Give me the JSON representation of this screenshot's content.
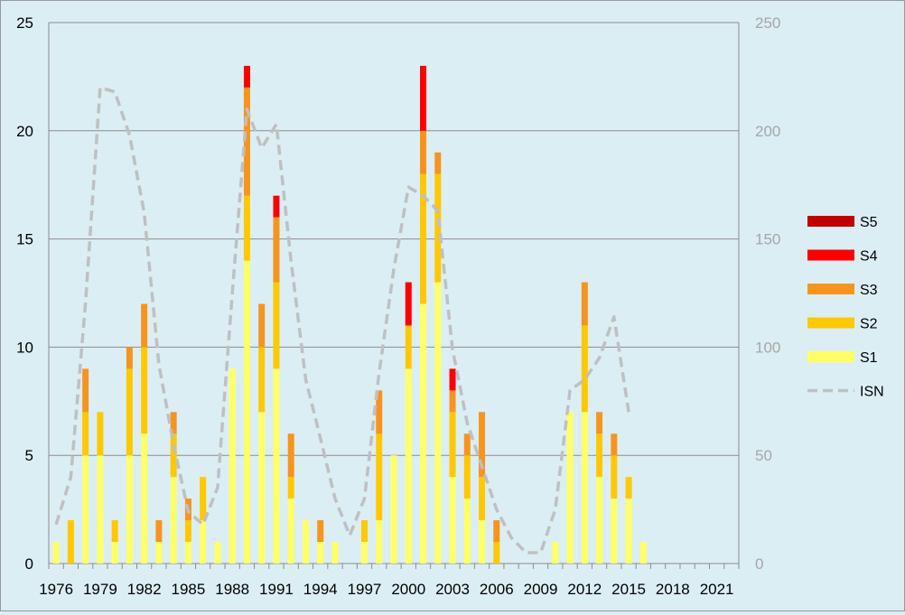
{
  "chart_data": {
    "type": "bar",
    "stacked": true,
    "x": [
      "1976",
      "1977",
      "1978",
      "1979",
      "1980",
      "1981",
      "1982",
      "1983",
      "1984",
      "1985",
      "1986",
      "1987",
      "1988",
      "1989",
      "1990",
      "1991",
      "1992",
      "1993",
      "1994",
      "1995",
      "1996",
      "1997",
      "1998",
      "1999",
      "2000",
      "2001",
      "2002",
      "2003",
      "2004",
      "2005",
      "2006",
      "2007",
      "2008",
      "2009",
      "2010",
      "2011",
      "2012",
      "2013",
      "2014",
      "2015",
      "2016",
      "2017",
      "2018",
      "2019",
      "2020",
      "2021",
      "2022"
    ],
    "x_tick_labels": [
      "1976",
      "1979",
      "1982",
      "1985",
      "1988",
      "1991",
      "1994",
      "1997",
      "2000",
      "2003",
      "2006",
      "2009",
      "2012",
      "2015",
      "2018",
      "2021"
    ],
    "series": [
      {
        "name": "S1",
        "color": "#ffff66",
        "values": [
          1,
          0,
          5,
          5,
          1,
          5,
          6,
          1,
          4,
          1,
          2,
          1,
          9,
          14,
          7,
          9,
          3,
          2,
          1,
          1,
          0,
          1,
          2,
          5,
          9,
          12,
          13,
          4,
          3,
          2,
          0,
          0,
          0,
          0,
          1,
          7,
          7,
          4,
          3,
          3,
          1,
          0,
          0,
          0,
          0,
          0,
          0
        ]
      },
      {
        "name": "S2",
        "color": "#ffc800",
        "values": [
          0,
          2,
          2,
          2,
          1,
          4,
          4,
          0,
          2,
          1,
          2,
          0,
          0,
          3,
          3,
          4,
          1,
          0,
          0,
          0,
          0,
          1,
          4,
          0,
          2,
          6,
          5,
          3,
          2,
          2,
          1,
          0,
          0,
          0,
          0,
          0,
          4,
          2,
          2,
          1,
          0,
          0,
          0,
          0,
          0,
          0,
          0
        ]
      },
      {
        "name": "S3",
        "color": "#f7941d",
        "values": [
          0,
          0,
          2,
          0,
          0,
          1,
          2,
          1,
          1,
          1,
          0,
          0,
          0,
          5,
          2,
          3,
          2,
          0,
          1,
          0,
          0,
          0,
          2,
          0,
          0,
          2,
          1,
          1,
          1,
          3,
          1,
          0,
          0,
          0,
          0,
          0,
          2,
          1,
          1,
          0,
          0,
          0,
          0,
          0,
          0,
          0,
          0
        ]
      },
      {
        "name": "S4",
        "color": "#ff0000",
        "values": [
          0,
          0,
          0,
          0,
          0,
          0,
          0,
          0,
          0,
          0,
          0,
          0,
          0,
          1,
          0,
          1,
          0,
          0,
          0,
          0,
          0,
          0,
          0,
          0,
          2,
          3,
          0,
          1,
          0,
          0,
          0,
          0,
          0,
          0,
          0,
          0,
          0,
          0,
          0,
          0,
          0,
          0,
          0,
          0,
          0,
          0,
          0
        ]
      },
      {
        "name": "S5",
        "color": "#c00000",
        "values": [
          0,
          0,
          0,
          0,
          0,
          0,
          0,
          0,
          0,
          0,
          0,
          0,
          0,
          0,
          0,
          0,
          0,
          0,
          0,
          0,
          0,
          0,
          0,
          0,
          0,
          0,
          0,
          0,
          0,
          0,
          0,
          0,
          0,
          0,
          0,
          0,
          0,
          0,
          0,
          0,
          0,
          0,
          0,
          0,
          0,
          0,
          0
        ]
      }
    ],
    "line_series": {
      "name": "ISN",
      "axis": "right",
      "color": "#c0c0c0",
      "style": "dashed",
      "x": [
        "1976",
        "1977",
        "1978",
        "1979",
        "1980",
        "1981",
        "1982",
        "1983",
        "1984",
        "1985",
        "1986",
        "1987",
        "1988",
        "1989",
        "1990",
        "1991",
        "1992",
        "1993",
        "1994",
        "1995",
        "1996",
        "1997",
        "1998",
        "1999",
        "2000",
        "2001",
        "2002",
        "2003",
        "2004",
        "2005",
        "2006",
        "2007",
        "2008",
        "2009",
        "2010",
        "2011",
        "2012",
        "2013",
        "2014",
        "2015"
      ],
      "values": [
        18,
        40,
        120,
        220,
        218,
        198,
        162,
        92,
        55,
        24,
        18,
        35,
        125,
        210,
        192,
        203,
        140,
        85,
        58,
        30,
        13,
        30,
        88,
        136,
        174,
        170,
        163,
        99,
        65,
        45,
        25,
        12,
        5,
        5,
        25,
        80,
        85,
        95,
        114,
        70
      ]
    },
    "left_axis": {
      "ylim": [
        0,
        25
      ],
      "ticks": [
        "0",
        "5",
        "10",
        "15",
        "20",
        "25"
      ]
    },
    "right_axis": {
      "ylim": [
        0,
        250
      ],
      "ticks": [
        "0",
        "50",
        "100",
        "150",
        "200",
        "250"
      ]
    },
    "grid": true,
    "legend": {
      "placement": "right",
      "entries": [
        "S5",
        "S4",
        "S3",
        "S2",
        "S1",
        "ISN"
      ]
    }
  }
}
